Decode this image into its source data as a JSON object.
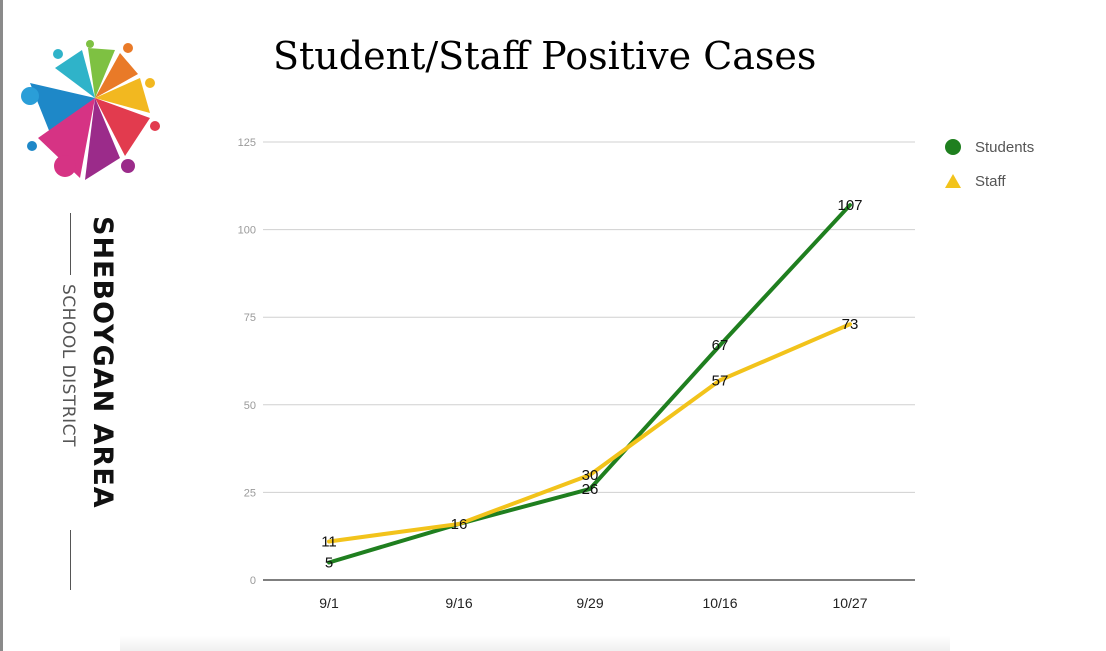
{
  "brand": {
    "name": "SHEBOYGAN AREA",
    "sub": "SCHOOL DISTRICT",
    "colors": [
      "#2a9ed8",
      "#e33a7b",
      "#f2b820",
      "#7ec142",
      "#9b2b8a",
      "#e0472c",
      "#1e7fc0"
    ]
  },
  "chart_data": {
    "type": "line",
    "title": "Student/Staff Positive Cases",
    "categories": [
      "9/1",
      "9/16",
      "9/29",
      "10/16",
      "10/27"
    ],
    "ylim": [
      0,
      125
    ],
    "yticks": [
      0,
      25,
      50,
      75,
      100,
      125
    ],
    "grid": true,
    "legend_position": "right",
    "series": [
      {
        "name": "Students",
        "values": [
          5,
          16,
          26,
          67,
          107
        ],
        "color": "#1f7f1f",
        "marker": "circle"
      },
      {
        "name": "Staff",
        "values": [
          11,
          16,
          30,
          57,
          73
        ],
        "color": "#f2c31b",
        "marker": "triangle"
      }
    ]
  }
}
